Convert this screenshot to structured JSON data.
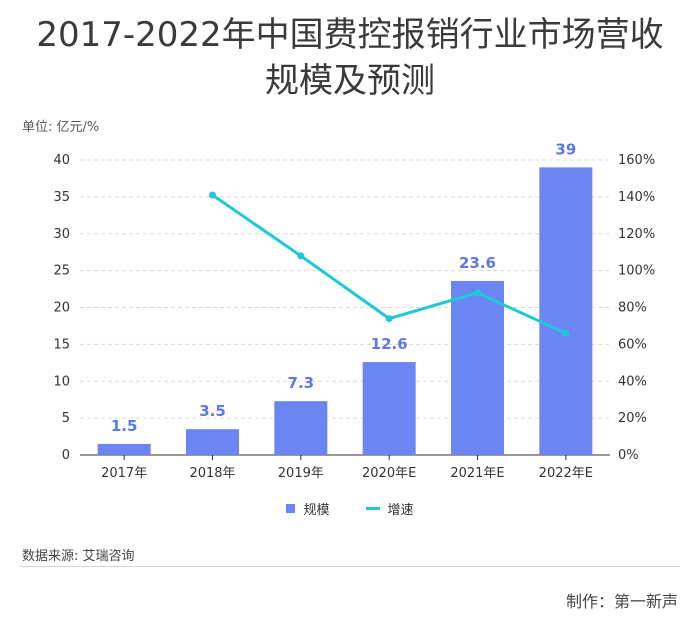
{
  "title_lines": [
    "2017-2022年中国费控报销行业市场营收",
    "规模及预测"
  ],
  "unit_label": "单位: 亿元/%",
  "source": "数据来源: 艾瑞咨询",
  "credit": "制作：第一新声",
  "colors": {
    "bar": "#6b86f2",
    "bar_label": "#5b78e8",
    "line": "#1ec8d6",
    "grid": "#d9d9d9",
    "text": "#333333"
  },
  "chart_data": {
    "type": "bar",
    "categories": [
      "2017年",
      "2018年",
      "2019年",
      "2020年E",
      "2021年E",
      "2022年E"
    ],
    "series": [
      {
        "name": "规模",
        "type": "bar",
        "axis": "left",
        "values": [
          1.5,
          3.5,
          7.3,
          12.6,
          23.6,
          39
        ],
        "labels": [
          "1.5",
          "3.5",
          "7.3",
          "12.6",
          "23.6",
          "39"
        ]
      },
      {
        "name": "增速",
        "type": "line",
        "axis": "right",
        "values": [
          null,
          141,
          108,
          74,
          88,
          66
        ]
      }
    ],
    "y_left": {
      "range": [
        0,
        40
      ],
      "ticks": [
        0,
        5,
        10,
        15,
        20,
        25,
        30,
        35,
        40
      ],
      "tick_labels": [
        "0",
        "5",
        "10",
        "15",
        "20",
        "25",
        "30",
        "35",
        "40"
      ]
    },
    "y_right": {
      "range": [
        0,
        160
      ],
      "ticks": [
        0,
        20,
        40,
        60,
        80,
        100,
        120,
        140,
        160
      ],
      "tick_labels": [
        "0%",
        "20%",
        "40%",
        "60%",
        "80%",
        "100%",
        "120%",
        "140%",
        "160%"
      ]
    },
    "grid": true,
    "legend": "bottom"
  }
}
